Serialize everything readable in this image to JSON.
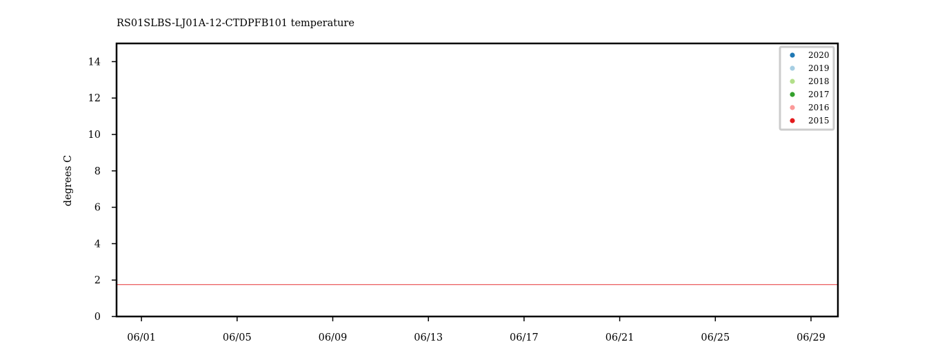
{
  "chart_data": {
    "type": "scatter",
    "title": "RS01SLBS-LJ01A-12-CTDPFB101 temperature",
    "xlabel": "",
    "ylabel": "degrees C",
    "ylim": [
      0,
      15
    ],
    "yticks": [
      0,
      2,
      4,
      6,
      8,
      10,
      12,
      14
    ],
    "ytick_labels": [
      "0",
      "2",
      "4",
      "6",
      "8",
      "10",
      "12",
      "14"
    ],
    "xlim": [
      "05-30 23:00",
      "06-30 03:00"
    ],
    "xticks": [
      "06-01",
      "06-05",
      "06-09",
      "06-13",
      "06-17",
      "06-21",
      "06-25",
      "06-29"
    ],
    "xtick_labels": [
      "06/01",
      "06/05",
      "06/09",
      "06/13",
      "06/17",
      "06/21",
      "06/25",
      "06/29"
    ],
    "grid": false,
    "legend_position": "top-right",
    "series": [
      {
        "name": "2020",
        "color": "#1f78b4",
        "x": [],
        "y": []
      },
      {
        "name": "2019",
        "color": "#a6cee3",
        "x": [],
        "y": []
      },
      {
        "name": "2018",
        "color": "#b2df8a",
        "x": [],
        "y": []
      },
      {
        "name": "2017",
        "color": "#33a02c",
        "x": [],
        "y": []
      },
      {
        "name": "2016",
        "color": "#fb9a99",
        "x": [],
        "y": []
      },
      {
        "name": "2015",
        "color": "#e31a1c",
        "x": [
          "05-30 23:00",
          "06-30 03:00"
        ],
        "y": [
          1.75,
          1.75
        ]
      }
    ]
  }
}
